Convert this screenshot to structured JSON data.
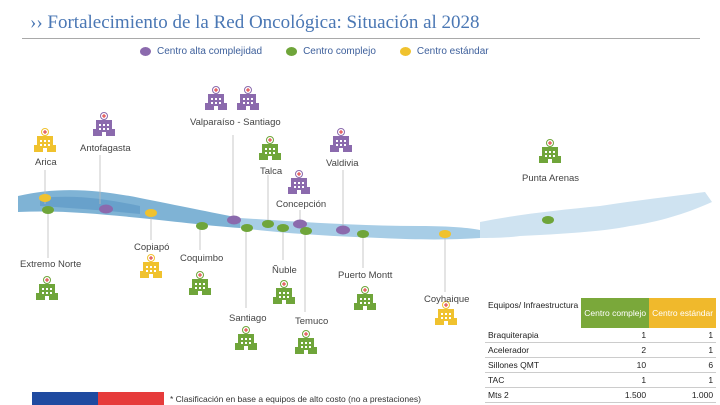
{
  "title": "›› Fortalecimiento de la Red Oncológica: Situación al 2028",
  "legend": [
    {
      "label": "Centro alta complejidad",
      "color": "#8b6aad"
    },
    {
      "label": "Centro complejo",
      "color": "#6fa53a"
    },
    {
      "label": "Centro estándar",
      "color": "#f0c22e"
    }
  ],
  "places": {
    "arica": "Arica",
    "antofagasta": "Antofagasta",
    "valparaiso": "Valparaíso - Santiago",
    "talca": "Talca",
    "valdivia": "Valdivia",
    "concepcion": "Concepción",
    "punta_arenas": "Punta Arenas",
    "copiapo": "Copiapó",
    "extremo_norte": "Extremo Norte",
    "coquimbo": "Coquimbo",
    "nuble": "Ñuble",
    "puerto_montt": "Puerto Montt",
    "coyhaique": "Coyhaique",
    "santiago": "Santiago",
    "temuco": "Temuco"
  },
  "table": {
    "header": [
      "Equipos/ Infraestructura",
      "Centro complejo",
      "Centro estándar"
    ],
    "rows": [
      [
        "Braquiterapia",
        "1",
        "1"
      ],
      [
        "Acelerador",
        "2",
        "1"
      ],
      [
        "Sillones QMT",
        "10",
        "6"
      ],
      [
        "TAC",
        "1",
        "1"
      ],
      [
        "Mts 2",
        "1.500",
        "1.000"
      ]
    ]
  },
  "footnote": "* Clasificación en base a equipos de alto costo (no a prestaciones)"
}
